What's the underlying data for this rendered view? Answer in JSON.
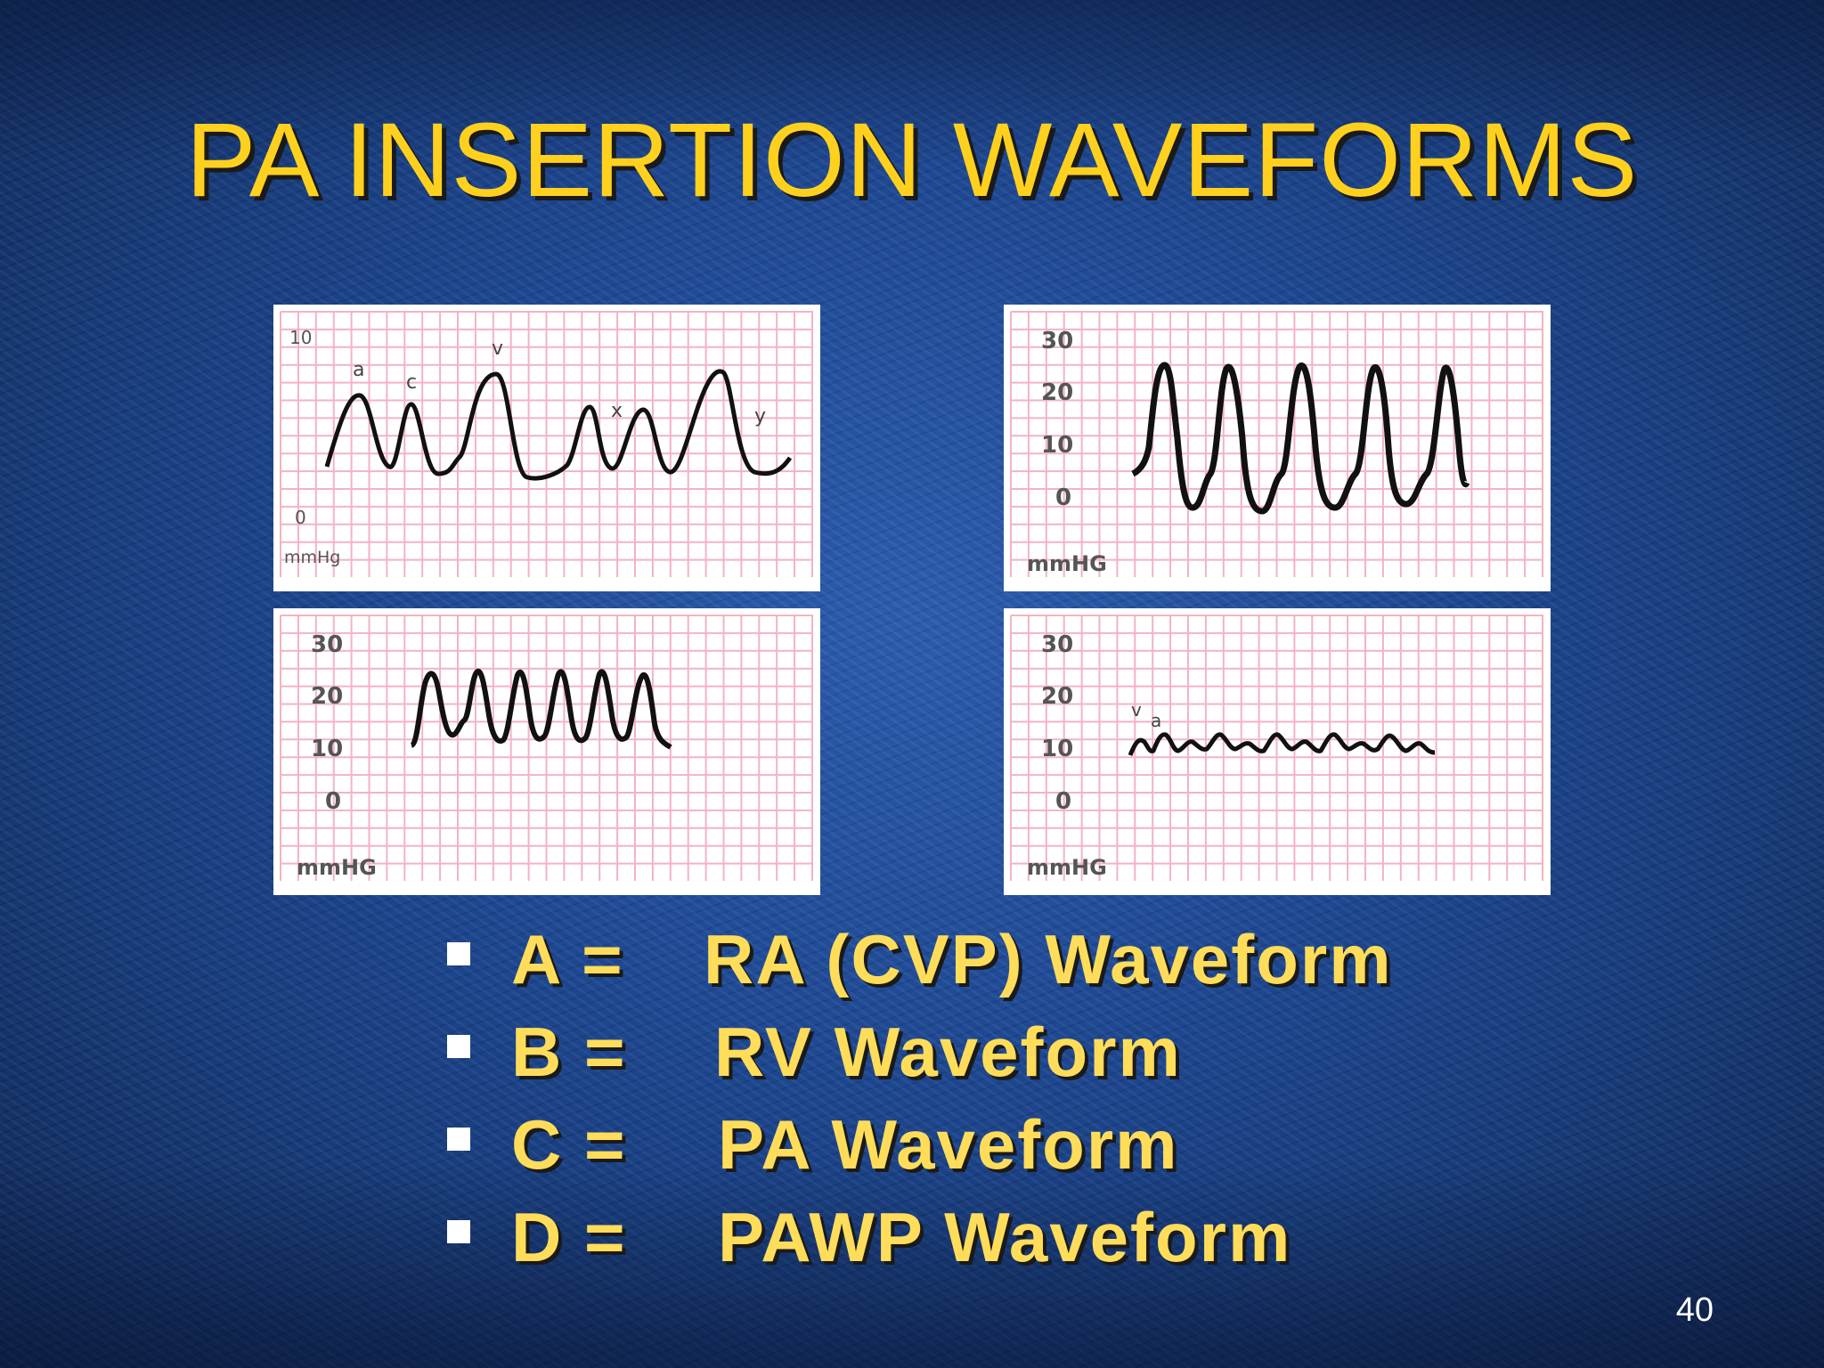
{
  "slide": {
    "title": "PA INSERTION WAVEFORMS",
    "page_number": "40"
  },
  "panels": {
    "a": {
      "y_top": "10",
      "y_bottom": "0",
      "unit": "mmHg",
      "wave_labels": [
        "a",
        "c",
        "v",
        "x",
        "y"
      ]
    },
    "b": {
      "y_ticks": [
        "30",
        "20",
        "10",
        "0"
      ],
      "unit": "mmHG"
    },
    "c": {
      "y_ticks": [
        "30",
        "20",
        "10",
        "0"
      ],
      "unit": "mmHG"
    },
    "d": {
      "y_ticks": [
        "30",
        "20",
        "10",
        "0"
      ],
      "unit": "mmHG",
      "wave_labels": [
        "v",
        "a"
      ]
    }
  },
  "bullets": [
    {
      "label": "A =",
      "text": "RA (CVP) Waveform"
    },
    {
      "label": "B =",
      "text": "RV Waveform"
    },
    {
      "label": "C =",
      "text": "PA Waveform"
    },
    {
      "label": "D =",
      "text": "PAWP Waveform"
    }
  ],
  "colors": {
    "title": "#ffd11e",
    "bullet_text": "#ffdd5a",
    "grid": "#f2b3c4",
    "trace": "#111111"
  }
}
